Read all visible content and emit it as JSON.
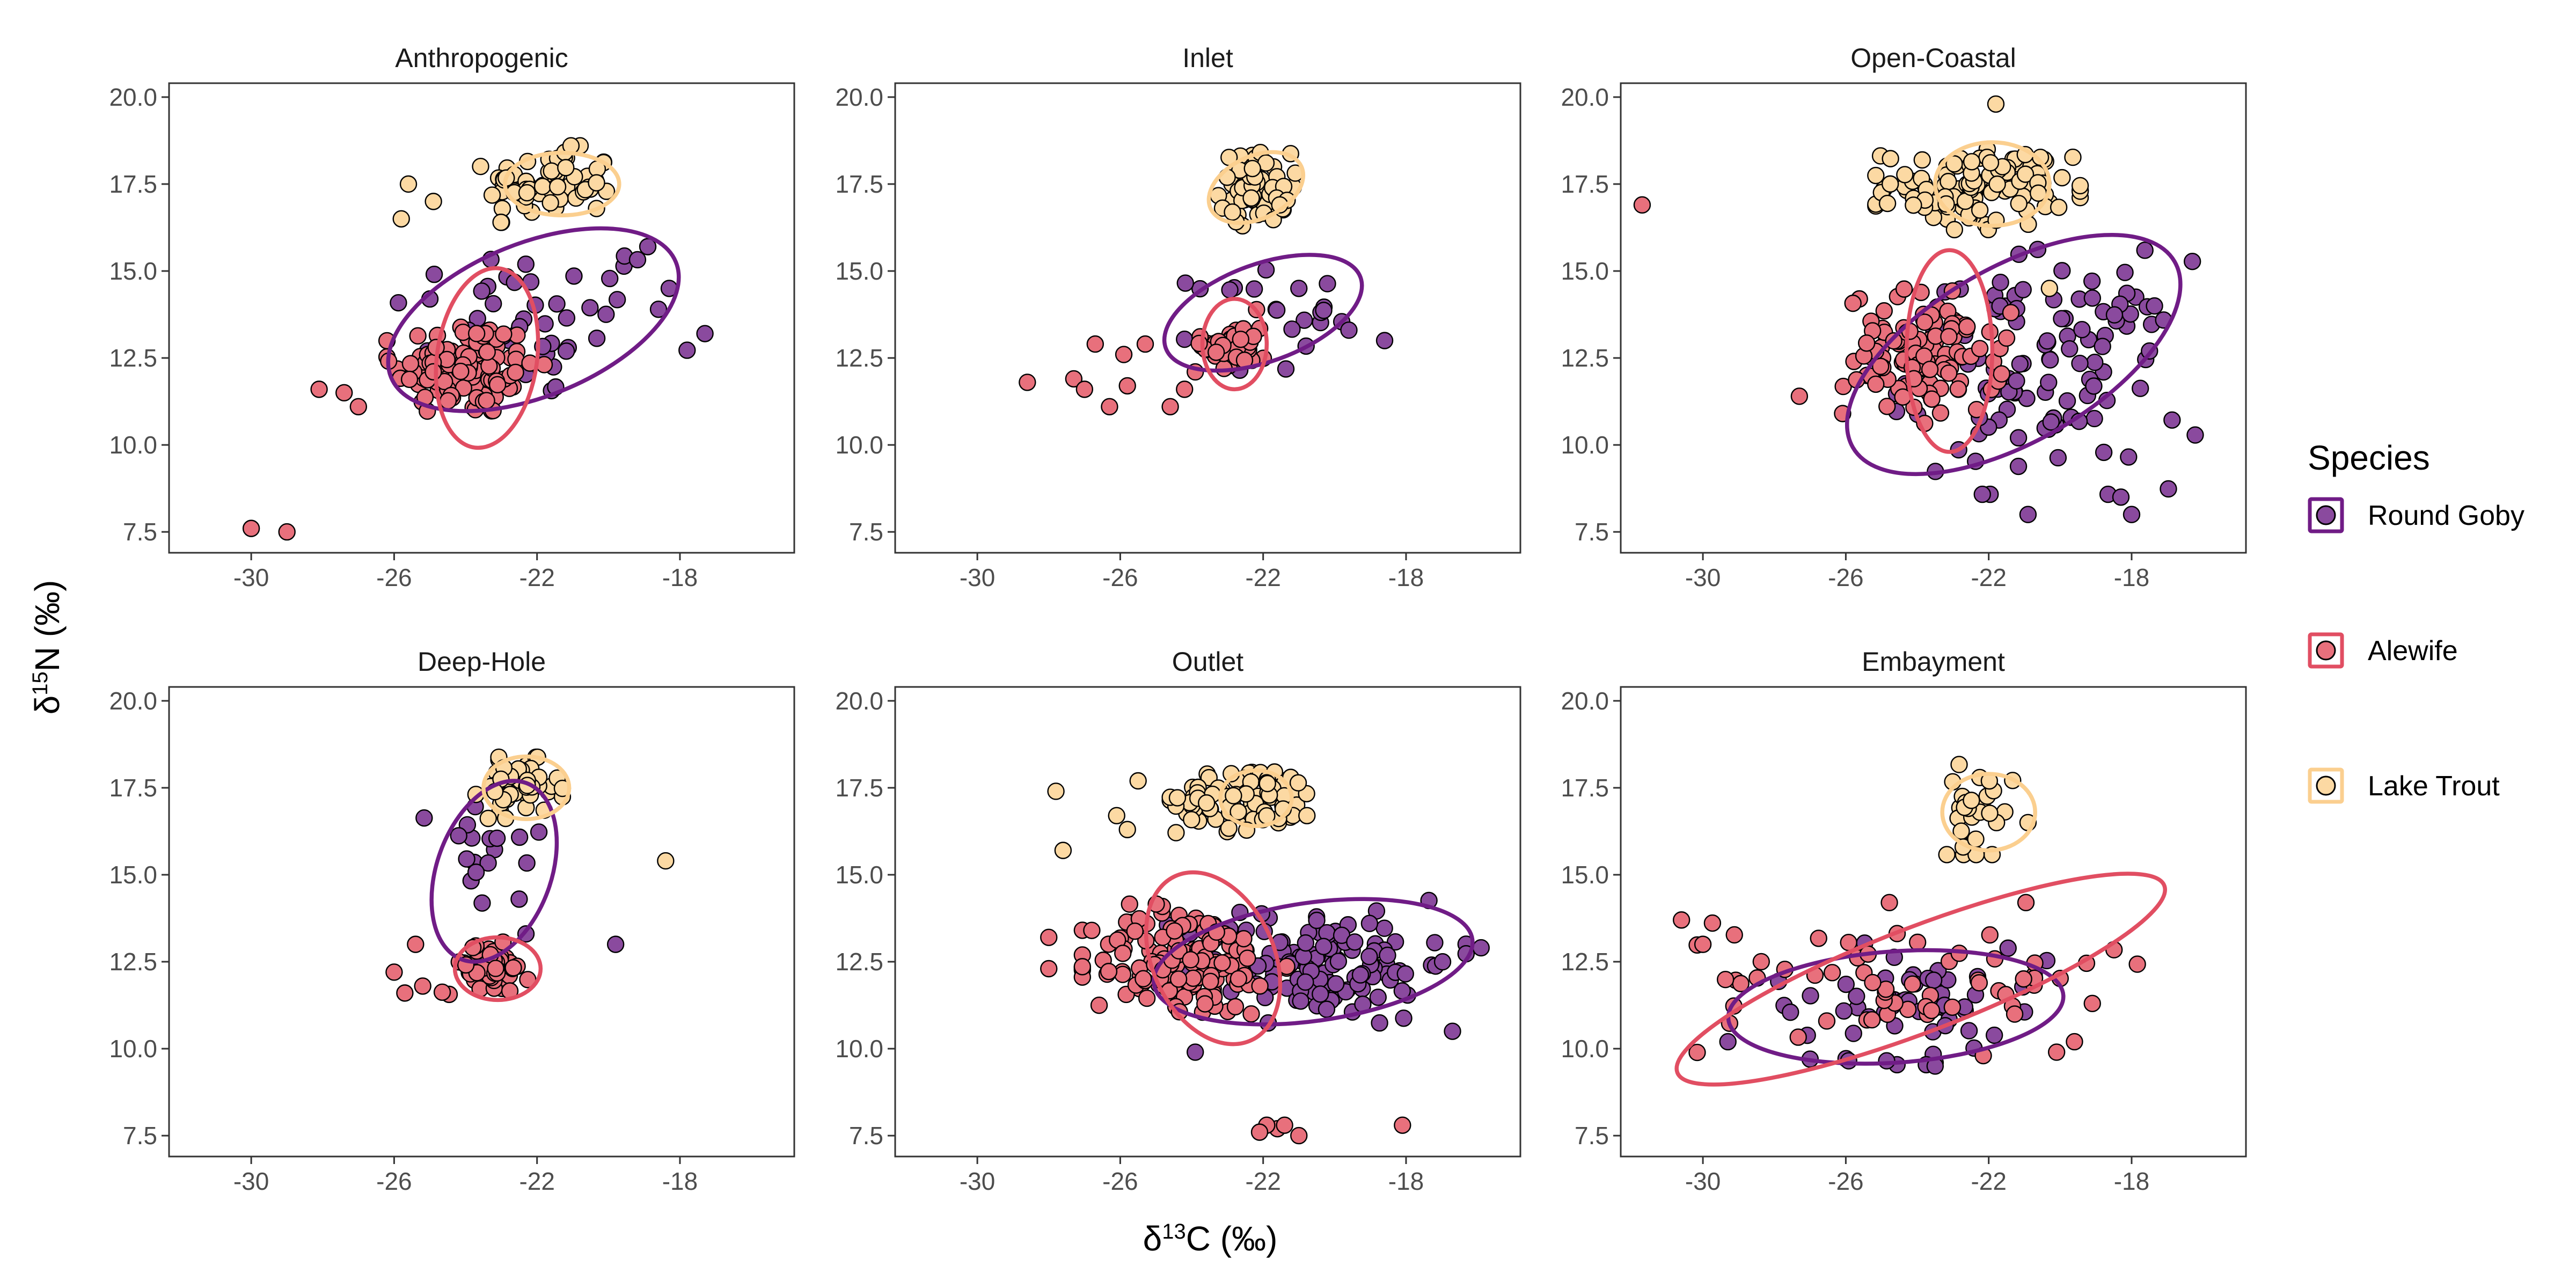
{
  "chart_data": {
    "type": "scatter",
    "xlabel": "δ13C (‰)",
    "ylabel": "δ15N (‰)",
    "xlim": [
      -32.3,
      -14.8
    ],
    "ylim": [
      6.9,
      20.4
    ],
    "x_ticks": [
      -30,
      -26,
      -22,
      -18
    ],
    "y_ticks": [
      7.5,
      10.0,
      12.5,
      15.0,
      17.5,
      20.0
    ],
    "legend": {
      "title": "Species",
      "position": "right",
      "entries": [
        {
          "name": "Round Goby",
          "fill": "#8a4a9e",
          "stroke": "#701c86"
        },
        {
          "name": "Alewife",
          "fill": "#e8707c",
          "stroke": "#e14e62"
        },
        {
          "name": "Lake Trout",
          "fill": "#fcd9a3",
          "stroke": "#fbcf8f"
        }
      ]
    },
    "panels": [
      {
        "title": "Anthropogenic",
        "clouds": [
          {
            "species": "Lake Trout",
            "cx": -21.6,
            "cy": 17.5,
            "sx": 0.9,
            "sy": 0.5,
            "n": 70
          },
          {
            "species": "Round Goby",
            "cx": -22.2,
            "cy": 13.6,
            "sx": 2.0,
            "sy": 1.2,
            "n": 45
          },
          {
            "species": "Alewife",
            "cx": -24.0,
            "cy": 12.2,
            "sx": 1.0,
            "sy": 0.7,
            "n": 120
          }
        ],
        "points": [
          {
            "species": "Alewife",
            "x": -30.0,
            "y": 7.6
          },
          {
            "species": "Alewife",
            "x": -29.0,
            "y": 7.5
          },
          {
            "species": "Alewife",
            "x": -28.1,
            "y": 11.6
          },
          {
            "species": "Alewife",
            "x": -27.4,
            "y": 11.5
          },
          {
            "species": "Alewife",
            "x": -27.0,
            "y": 11.1
          },
          {
            "species": "Round Goby",
            "x": -17.3,
            "y": 13.2
          },
          {
            "species": "Round Goby",
            "x": -18.3,
            "y": 14.5
          },
          {
            "species": "Round Goby",
            "x": -18.6,
            "y": 13.9
          },
          {
            "species": "Round Goby",
            "x": -18.9,
            "y": 15.7
          },
          {
            "species": "Lake Trout",
            "x": -25.8,
            "y": 16.5
          },
          {
            "species": "Lake Trout",
            "x": -25.6,
            "y": 17.5
          },
          {
            "species": "Lake Trout",
            "x": -24.9,
            "y": 17.0
          }
        ],
        "ellipses": [
          {
            "species": "Round Goby",
            "cx": -22.1,
            "cy": 13.6,
            "rx": 4.3,
            "ry": 2.2,
            "angle": -22
          },
          {
            "species": "Alewife",
            "cx": -23.4,
            "cy": 12.5,
            "rx": 1.4,
            "ry": 2.6,
            "angle": 8
          },
          {
            "species": "Lake Trout",
            "cx": -21.3,
            "cy": 17.5,
            "rx": 1.6,
            "ry": 0.9,
            "angle": 0
          }
        ]
      },
      {
        "title": "Inlet",
        "clouds": [
          {
            "species": "Lake Trout",
            "cx": -22.2,
            "cy": 17.4,
            "sx": 0.5,
            "sy": 0.5,
            "n": 60
          },
          {
            "species": "Round Goby",
            "cx": -22.0,
            "cy": 13.7,
            "sx": 1.0,
            "sy": 0.8,
            "n": 20
          },
          {
            "species": "Alewife",
            "cx": -22.8,
            "cy": 12.9,
            "sx": 0.45,
            "sy": 0.45,
            "n": 40
          }
        ],
        "points": [
          {
            "species": "Alewife",
            "x": -28.6,
            "y": 11.8
          },
          {
            "species": "Alewife",
            "x": -27.3,
            "y": 11.9
          },
          {
            "species": "Alewife",
            "x": -27.0,
            "y": 11.6
          },
          {
            "species": "Alewife",
            "x": -26.7,
            "y": 12.9
          },
          {
            "species": "Alewife",
            "x": -26.3,
            "y": 11.1
          },
          {
            "species": "Alewife",
            "x": -25.8,
            "y": 11.7
          },
          {
            "species": "Alewife",
            "x": -25.9,
            "y": 12.6
          },
          {
            "species": "Alewife",
            "x": -25.3,
            "y": 12.9
          },
          {
            "species": "Alewife",
            "x": -24.6,
            "y": 11.1
          },
          {
            "species": "Alewife",
            "x": -24.2,
            "y": 11.6
          },
          {
            "species": "Alewife",
            "x": -23.9,
            "y": 12.1
          },
          {
            "species": "Round Goby",
            "x": -18.6,
            "y": 13.0
          },
          {
            "species": "Round Goby",
            "x": -19.6,
            "y": 13.3
          },
          {
            "species": "Round Goby",
            "x": -21.0,
            "y": 14.5
          }
        ],
        "ellipses": [
          {
            "species": "Round Goby",
            "cx": -22.0,
            "cy": 13.8,
            "rx": 2.9,
            "ry": 1.4,
            "angle": -20
          },
          {
            "species": "Alewife",
            "cx": -22.8,
            "cy": 12.9,
            "rx": 0.9,
            "ry": 1.3,
            "angle": 0
          },
          {
            "species": "Lake Trout",
            "cx": -22.2,
            "cy": 17.4,
            "rx": 1.4,
            "ry": 0.9,
            "angle": -25
          }
        ]
      },
      {
        "title": "Open-Coastal",
        "clouds": [
          {
            "species": "Lake Trout",
            "cx": -22.3,
            "cy": 17.4,
            "sx": 1.3,
            "sy": 0.55,
            "n": 110
          },
          {
            "species": "Round Goby",
            "cx": -20.4,
            "cy": 12.1,
            "sx": 1.9,
            "sy": 1.6,
            "n": 110
          },
          {
            "species": "Alewife",
            "cx": -23.8,
            "cy": 12.6,
            "sx": 1.1,
            "sy": 0.9,
            "n": 110
          }
        ],
        "points": [
          {
            "species": "Alewife",
            "x": -31.7,
            "y": 16.9
          },
          {
            "species": "Alewife",
            "x": -27.3,
            "y": 11.4
          },
          {
            "species": "Round Goby",
            "x": -20.9,
            "y": 8.0
          },
          {
            "species": "Round Goby",
            "x": -18.0,
            "y": 8.0
          },
          {
            "species": "Round Goby",
            "x": -18.3,
            "y": 8.5
          },
          {
            "species": "Round Goby",
            "x": -17.5,
            "y": 12.7
          },
          {
            "species": "Lake Trout",
            "x": -21.8,
            "y": 19.8
          },
          {
            "species": "Lake Trout",
            "x": -20.3,
            "y": 14.5
          }
        ],
        "ellipses": [
          {
            "species": "Round Goby",
            "cx": -21.3,
            "cy": 12.6,
            "rx": 5.2,
            "ry": 2.5,
            "angle": -30
          },
          {
            "species": "Alewife",
            "cx": -23.1,
            "cy": 12.7,
            "rx": 1.2,
            "ry": 2.9,
            "angle": 0
          },
          {
            "species": "Lake Trout",
            "cx": -21.9,
            "cy": 17.5,
            "rx": 1.6,
            "ry": 1.2,
            "angle": 0
          }
        ]
      },
      {
        "title": "Deep-Hole",
        "clouds": [
          {
            "species": "Lake Trout",
            "cx": -22.5,
            "cy": 17.5,
            "sx": 0.55,
            "sy": 0.4,
            "n": 50
          },
          {
            "species": "Round Goby",
            "cx": -23.4,
            "cy": 15.5,
            "sx": 0.8,
            "sy": 1.0,
            "n": 18
          },
          {
            "species": "Alewife",
            "cx": -23.4,
            "cy": 12.3,
            "sx": 0.6,
            "sy": 0.35,
            "n": 55
          }
        ],
        "points": [
          {
            "species": "Alewife",
            "x": -26.0,
            "y": 12.2
          },
          {
            "species": "Alewife",
            "x": -25.7,
            "y": 11.6
          },
          {
            "species": "Alewife",
            "x": -25.4,
            "y": 13.0
          },
          {
            "species": "Alewife",
            "x": -25.2,
            "y": 11.8
          },
          {
            "species": "Round Goby",
            "x": -19.8,
            "y": 13.0
          },
          {
            "species": "Round Goby",
            "x": -22.5,
            "y": 14.3
          },
          {
            "species": "Lake Trout",
            "x": -18.4,
            "y": 15.4
          }
        ],
        "ellipses": [
          {
            "species": "Round Goby",
            "cx": -23.2,
            "cy": 15.1,
            "rx": 1.6,
            "ry": 2.7,
            "angle": 20
          },
          {
            "species": "Alewife",
            "cx": -23.1,
            "cy": 12.3,
            "rx": 1.2,
            "ry": 0.9,
            "angle": 0
          },
          {
            "species": "Lake Trout",
            "cx": -22.3,
            "cy": 17.5,
            "rx": 1.2,
            "ry": 0.9,
            "angle": 0
          }
        ]
      },
      {
        "title": "Outlet",
        "clouds": [
          {
            "species": "Lake Trout",
            "cx": -22.4,
            "cy": 17.2,
            "sx": 1.0,
            "sy": 0.45,
            "n": 90
          },
          {
            "species": "Round Goby",
            "cx": -20.5,
            "cy": 12.5,
            "sx": 1.9,
            "sy": 0.8,
            "n": 130
          },
          {
            "species": "Alewife",
            "cx": -24.2,
            "cy": 12.5,
            "sx": 1.3,
            "sy": 0.8,
            "n": 150
          }
        ],
        "points": [
          {
            "species": "Lake Trout",
            "x": -27.8,
            "y": 17.4
          },
          {
            "species": "Lake Trout",
            "x": -27.6,
            "y": 15.7
          },
          {
            "species": "Lake Trout",
            "x": -26.1,
            "y": 16.7
          },
          {
            "species": "Lake Trout",
            "x": -25.8,
            "y": 16.3
          },
          {
            "species": "Lake Trout",
            "x": -25.5,
            "y": 17.7
          },
          {
            "species": "Alewife",
            "x": -21.0,
            "y": 7.5
          },
          {
            "species": "Alewife",
            "x": -21.6,
            "y": 7.7
          },
          {
            "species": "Alewife",
            "x": -21.9,
            "y": 7.8
          },
          {
            "species": "Alewife",
            "x": -21.4,
            "y": 7.8
          },
          {
            "species": "Alewife",
            "x": -22.1,
            "y": 7.6
          },
          {
            "species": "Alewife",
            "x": -18.1,
            "y": 7.8
          },
          {
            "species": "Alewife",
            "x": -28.0,
            "y": 12.3
          },
          {
            "species": "Alewife",
            "x": -28.0,
            "y": 13.2
          },
          {
            "species": "Round Goby",
            "x": -15.9,
            "y": 12.9
          },
          {
            "species": "Round Goby",
            "x": -16.7,
            "y": 10.5
          },
          {
            "species": "Round Goby",
            "x": -23.9,
            "y": 9.9
          }
        ],
        "ellipses": [
          {
            "species": "Round Goby",
            "cx": -20.6,
            "cy": 12.5,
            "rx": 4.5,
            "ry": 1.7,
            "angle": -8
          },
          {
            "species": "Alewife",
            "cx": -23.4,
            "cy": 12.6,
            "rx": 1.7,
            "ry": 2.6,
            "angle": -25
          },
          {
            "species": "Lake Trout",
            "cx": -22.2,
            "cy": 17.2,
            "rx": 1.0,
            "ry": 0.8,
            "angle": 0
          }
        ]
      },
      {
        "title": "Embayment",
        "clouds": [
          {
            "species": "Lake Trout",
            "cx": -22.3,
            "cy": 16.9,
            "sx": 0.5,
            "sy": 0.6,
            "n": 30
          },
          {
            "species": "Round Goby",
            "cx": -24.3,
            "cy": 11.3,
            "sx": 2.0,
            "sy": 0.8,
            "n": 55
          },
          {
            "species": "Alewife",
            "cx": -24.0,
            "cy": 12.0,
            "sx": 2.8,
            "sy": 1.0,
            "n": 60
          }
        ],
        "points": [
          {
            "species": "Alewife",
            "x": -30.6,
            "y": 13.7
          },
          {
            "species": "Alewife",
            "x": -30.0,
            "y": 13.0
          },
          {
            "species": "Alewife",
            "x": -19.1,
            "y": 11.3
          },
          {
            "species": "Alewife",
            "x": -19.6,
            "y": 10.2
          },
          {
            "species": "Alewife",
            "x": -20.1,
            "y": 9.9
          },
          {
            "species": "Round Goby",
            "x": -29.3,
            "y": 10.2
          },
          {
            "species": "Round Goby",
            "x": -27.0,
            "y": 9.7
          },
          {
            "species": "Round Goby",
            "x": -23.5,
            "y": 9.5
          },
          {
            "species": "Lake Trout",
            "x": -20.9,
            "y": 16.5
          }
        ],
        "ellipses": [
          {
            "species": "Round Goby",
            "cx": -24.6,
            "cy": 11.2,
            "rx": 4.7,
            "ry": 1.6,
            "angle": -4
          },
          {
            "species": "Alewife",
            "cx": -23.9,
            "cy": 12.0,
            "rx": 7.3,
            "ry": 1.5,
            "angle": -21
          },
          {
            "species": "Lake Trout",
            "cx": -22.0,
            "cy": 16.8,
            "rx": 1.3,
            "ry": 1.1,
            "angle": 0
          }
        ]
      }
    ]
  }
}
